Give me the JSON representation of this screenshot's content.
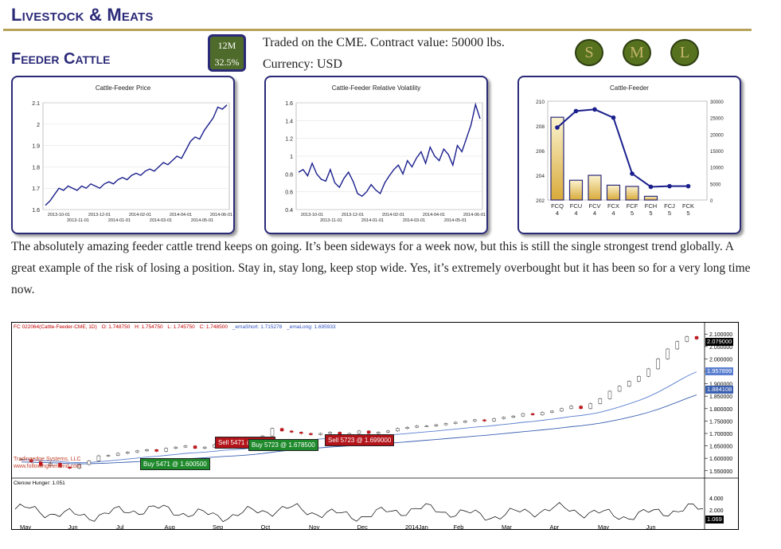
{
  "header": {
    "section_title": "Livestock & Meats",
    "market_title": "Feeder Cattle",
    "badge": {
      "period": "12M",
      "value": "32.5%"
    },
    "contract_info": "Traded on the CME. Contract value: 50000 lbs. Currency: USD",
    "size_buttons": [
      "S",
      "M",
      "L"
    ]
  },
  "colors": {
    "navy": "#2b2a78",
    "gold": "#b6a35a",
    "badge_green": "#4f6b2b",
    "line_blue": "#1a1f8c"
  },
  "commentary": "The absolutely amazing feeder cattle trend keeps on going. It’s been sideways for a week now, but this is still the single strongest trend globally. A great example of the risk of losing a position. Stay in, stay long, keep stop wide. Yes, it’s extremely overbought but it has been so for a very long time now.",
  "chart_data": [
    {
      "type": "line",
      "title": "Cattle-Feeder Price",
      "x_top": [
        "2013-10-01",
        "2013-12-01",
        "2014-02-01",
        "2014-04-01",
        "2014-06-01"
      ],
      "x_bottom": [
        "2013-11-01",
        "2014-01-01",
        "2014-03-01",
        "2014-05-01"
      ],
      "yticks": [
        "2.1",
        "2",
        "1.9",
        "1.8",
        "1.7",
        "1.6"
      ],
      "ylim": [
        1.6,
        2.1
      ],
      "values": [
        1.62,
        1.64,
        1.67,
        1.7,
        1.69,
        1.71,
        1.7,
        1.69,
        1.71,
        1.7,
        1.72,
        1.71,
        1.7,
        1.72,
        1.73,
        1.72,
        1.74,
        1.75,
        1.74,
        1.76,
        1.77,
        1.76,
        1.78,
        1.79,
        1.78,
        1.8,
        1.82,
        1.81,
        1.83,
        1.85,
        1.84,
        1.88,
        1.92,
        1.94,
        1.93,
        1.97,
        2.0,
        2.03,
        2.08,
        2.07,
        2.09
      ]
    },
    {
      "type": "line",
      "title": "Cattle-Feeder Relative Volatility",
      "x_top": [
        "2013-10-01",
        "2013-12-01",
        "2014-02-01",
        "2014-04-01",
        "2014-06-01"
      ],
      "x_bottom": [
        "2013-11-01",
        "2014-01-01",
        "2014-03-01",
        "2014-05-01"
      ],
      "yticks": [
        "1.6",
        "1.4",
        "1.2",
        "1",
        "0.8",
        "0.6",
        "0.4"
      ],
      "ylim": [
        0.4,
        1.6
      ],
      "values": [
        0.82,
        0.85,
        0.78,
        0.92,
        0.8,
        0.74,
        0.72,
        0.85,
        0.7,
        0.65,
        0.75,
        0.82,
        0.72,
        0.58,
        0.55,
        0.6,
        0.68,
        0.62,
        0.58,
        0.7,
        0.78,
        0.85,
        0.9,
        0.8,
        0.95,
        0.88,
        0.98,
        1.05,
        0.92,
        1.1,
        1.0,
        0.95,
        1.08,
        1.02,
        0.9,
        1.12,
        1.05,
        1.2,
        1.35,
        1.58,
        1.42
      ]
    },
    {
      "type": "bar",
      "title": "Cattle-Feeder",
      "categories": [
        "FCQ",
        "FCU",
        "FCV",
        "FCX",
        "FCF",
        "FCH",
        "FCJ",
        "FCK"
      ],
      "category_years": [
        "4",
        "4",
        "4",
        "4",
        "5",
        "5",
        "5",
        "5"
      ],
      "bars": [
        208.7,
        203.6,
        204.0,
        203.2,
        203.1,
        202.3,
        202.0,
        202.0
      ],
      "line": [
        22000,
        27000,
        27500,
        25000,
        8000,
        4000,
        4200,
        4200
      ],
      "y_left_ticks": [
        "210",
        "208",
        "206",
        "204",
        "202"
      ],
      "y_left_lim": [
        202,
        210
      ],
      "y_right_ticks": [
        "30000",
        "25000",
        "20000",
        "15000",
        "10000",
        "5000",
        "0"
      ],
      "y_right_lim": [
        0,
        30000
      ]
    },
    {
      "type": "candlestick",
      "header": {
        "symbol": "FC 022064(Cattle-Feeder-CME, 1D)",
        "open": "O: 1.748750",
        "high": "H: 1.754750",
        "low": "L: 1.745750",
        "close": "C: 1.748500",
        "ema_short": "_emaShort: 1.715278",
        "ema_long": "_emaLong: 1.695933"
      },
      "y_ticks": [
        "2.100000",
        "2.050000",
        "2.000000",
        "1.950000",
        "1.900000",
        "1.850000",
        "1.800000",
        "1.750000",
        "1.700000",
        "1.650000",
        "1.600000",
        "1.550000"
      ],
      "ylim": [
        1.53,
        2.12
      ],
      "price_tags": [
        {
          "value": "2.079000",
          "kind": "close"
        },
        {
          "value": "1.957899",
          "kind": "ema_short"
        },
        {
          "value": "1.884108",
          "kind": "ema_long"
        }
      ],
      "months": [
        "May",
        "Jun",
        "Jul",
        "Aug",
        "Sep",
        "Oct",
        "Nov",
        "Dec",
        "2014Jan",
        "Feb",
        "Mar",
        "Apr",
        "May",
        "Jun"
      ],
      "closes": [
        1.595,
        1.585,
        1.57,
        1.58,
        1.565,
        1.56,
        1.575,
        1.59,
        1.61,
        1.612,
        1.62,
        1.625,
        1.63,
        1.635,
        1.628,
        1.64,
        1.645,
        1.65,
        1.64,
        1.645,
        1.655,
        1.66,
        1.65,
        1.662,
        1.675,
        1.69,
        1.72,
        1.71,
        1.705,
        1.7,
        1.695,
        1.7,
        1.705,
        1.69,
        1.7,
        1.71,
        1.7,
        1.705,
        1.71,
        1.72,
        1.725,
        1.73,
        1.73,
        1.735,
        1.74,
        1.745,
        1.75,
        1.755,
        1.75,
        1.76,
        1.765,
        1.77,
        1.78,
        1.775,
        1.785,
        1.79,
        1.8,
        1.81,
        1.8,
        1.82,
        1.84,
        1.87,
        1.89,
        1.91,
        1.93,
        1.96,
        2.0,
        2.04,
        2.07,
        2.09,
        2.08
      ],
      "trades": [
        {
          "label": "Sell 5471 @ 1.59...",
          "side": "sell"
        },
        {
          "label": "Buy 5471 @ 1.600500",
          "side": "buy"
        },
        {
          "label": "Buy 5723 @ 1.678500",
          "side": "buy"
        },
        {
          "label": "Sell 5723 @ 1.699000",
          "side": "sell"
        }
      ],
      "watermark": [
        "Tradingedge Systems, LLC",
        "www.followingthetrend.com"
      ],
      "indicator": {
        "label": "Clenow Hunger: 1.051",
        "ticks": [
          "4.000",
          "2.000"
        ],
        "last": "1.069"
      }
    }
  ]
}
